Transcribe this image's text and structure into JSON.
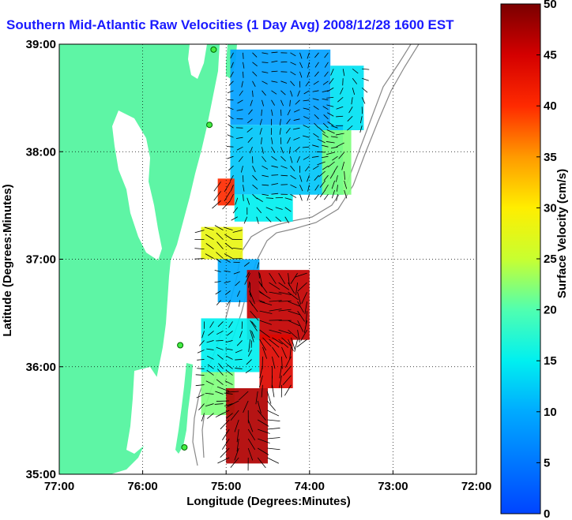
{
  "chart_data": {
    "type": "heatmap",
    "title": "Southern Mid-Atlantic Raw Velocities (1 Day Avg) 2008/12/28 1600 EST",
    "xlabel": "Longitude (Degrees:Minutes)",
    "ylabel": "Latitude (Degrees:Minutes)",
    "colorbar_label": "Surface Velocity (cm/s)",
    "xlim": [
      -77,
      -72
    ],
    "ylim": [
      35,
      39
    ],
    "x_ticks": [
      {
        "value": -77,
        "label": "77:00"
      },
      {
        "value": -76,
        "label": "76:00"
      },
      {
        "value": -75,
        "label": "75:00"
      },
      {
        "value": -74,
        "label": "74:00"
      },
      {
        "value": -73,
        "label": "73:00"
      },
      {
        "value": -72,
        "label": "72:00"
      }
    ],
    "y_ticks": [
      {
        "value": 35,
        "label": "35:00"
      },
      {
        "value": 36,
        "label": "36:00"
      },
      {
        "value": 37,
        "label": "37:00"
      },
      {
        "value": 38,
        "label": "38:00"
      },
      {
        "value": 39,
        "label": "39:00"
      }
    ],
    "colorbar_range": [
      0,
      50
    ],
    "colorbar_ticks": [
      {
        "value": 0,
        "label": "0"
      },
      {
        "value": 5,
        "label": "5"
      },
      {
        "value": 10,
        "label": "10"
      },
      {
        "value": 15,
        "label": "15"
      },
      {
        "value": 20,
        "label": "20"
      },
      {
        "value": 25,
        "label": "25"
      },
      {
        "value": 30,
        "label": "30"
      },
      {
        "value": 35,
        "label": "35"
      },
      {
        "value": 40,
        "label": "40"
      },
      {
        "value": 45,
        "label": "45"
      },
      {
        "value": 50,
        "label": "50"
      }
    ],
    "grid": "dotted",
    "colormap": "jet",
    "land_color": "#5ef5a5",
    "regions": [
      {
        "lon": [
          -74.95,
          -73.75
        ],
        "lat": [
          38.25,
          38.95
        ],
        "speed": 9
      },
      {
        "lon": [
          -73.75,
          -73.35
        ],
        "lat": [
          38.2,
          38.8
        ],
        "speed": 14
      },
      {
        "lon": [
          -74.95,
          -73.6
        ],
        "lat": [
          37.6,
          38.25
        ],
        "speed": 12
      },
      {
        "lon": [
          -74.9,
          -74.2
        ],
        "lat": [
          37.35,
          37.6
        ],
        "speed": 15
      },
      {
        "lon": [
          -73.85,
          -73.5
        ],
        "lat": [
          37.6,
          38.2
        ],
        "speed": 22
      },
      {
        "lon": [
          -75.1,
          -74.9
        ],
        "lat": [
          37.5,
          37.75
        ],
        "speed": 40
      },
      {
        "lon": [
          -75.3,
          -74.8
        ],
        "lat": [
          37.0,
          37.3
        ],
        "speed": 28
      },
      {
        "lon": [
          -75.1,
          -74.6
        ],
        "lat": [
          36.6,
          37.0
        ],
        "speed": 10
      },
      {
        "lon": [
          -74.75,
          -74.0
        ],
        "lat": [
          36.25,
          36.9
        ],
        "speed": 46
      },
      {
        "lon": [
          -75.3,
          -74.6
        ],
        "lat": [
          35.95,
          36.45
        ],
        "speed": 15
      },
      {
        "lon": [
          -74.6,
          -74.2
        ],
        "lat": [
          35.8,
          36.3
        ],
        "speed": 44
      },
      {
        "lon": [
          -75.3,
          -74.9
        ],
        "lat": [
          35.55,
          35.95
        ],
        "speed": 22
      },
      {
        "lon": [
          -75.0,
          -74.5
        ],
        "lat": [
          35.1,
          35.8
        ],
        "speed": 47
      }
    ],
    "stations": [
      {
        "lon": -75.15,
        "lat": 38.95
      },
      {
        "lon": -75.2,
        "lat": 38.25
      },
      {
        "lon": -75.55,
        "lat": 36.2
      },
      {
        "lon": -75.5,
        "lat": 35.25
      }
    ]
  }
}
